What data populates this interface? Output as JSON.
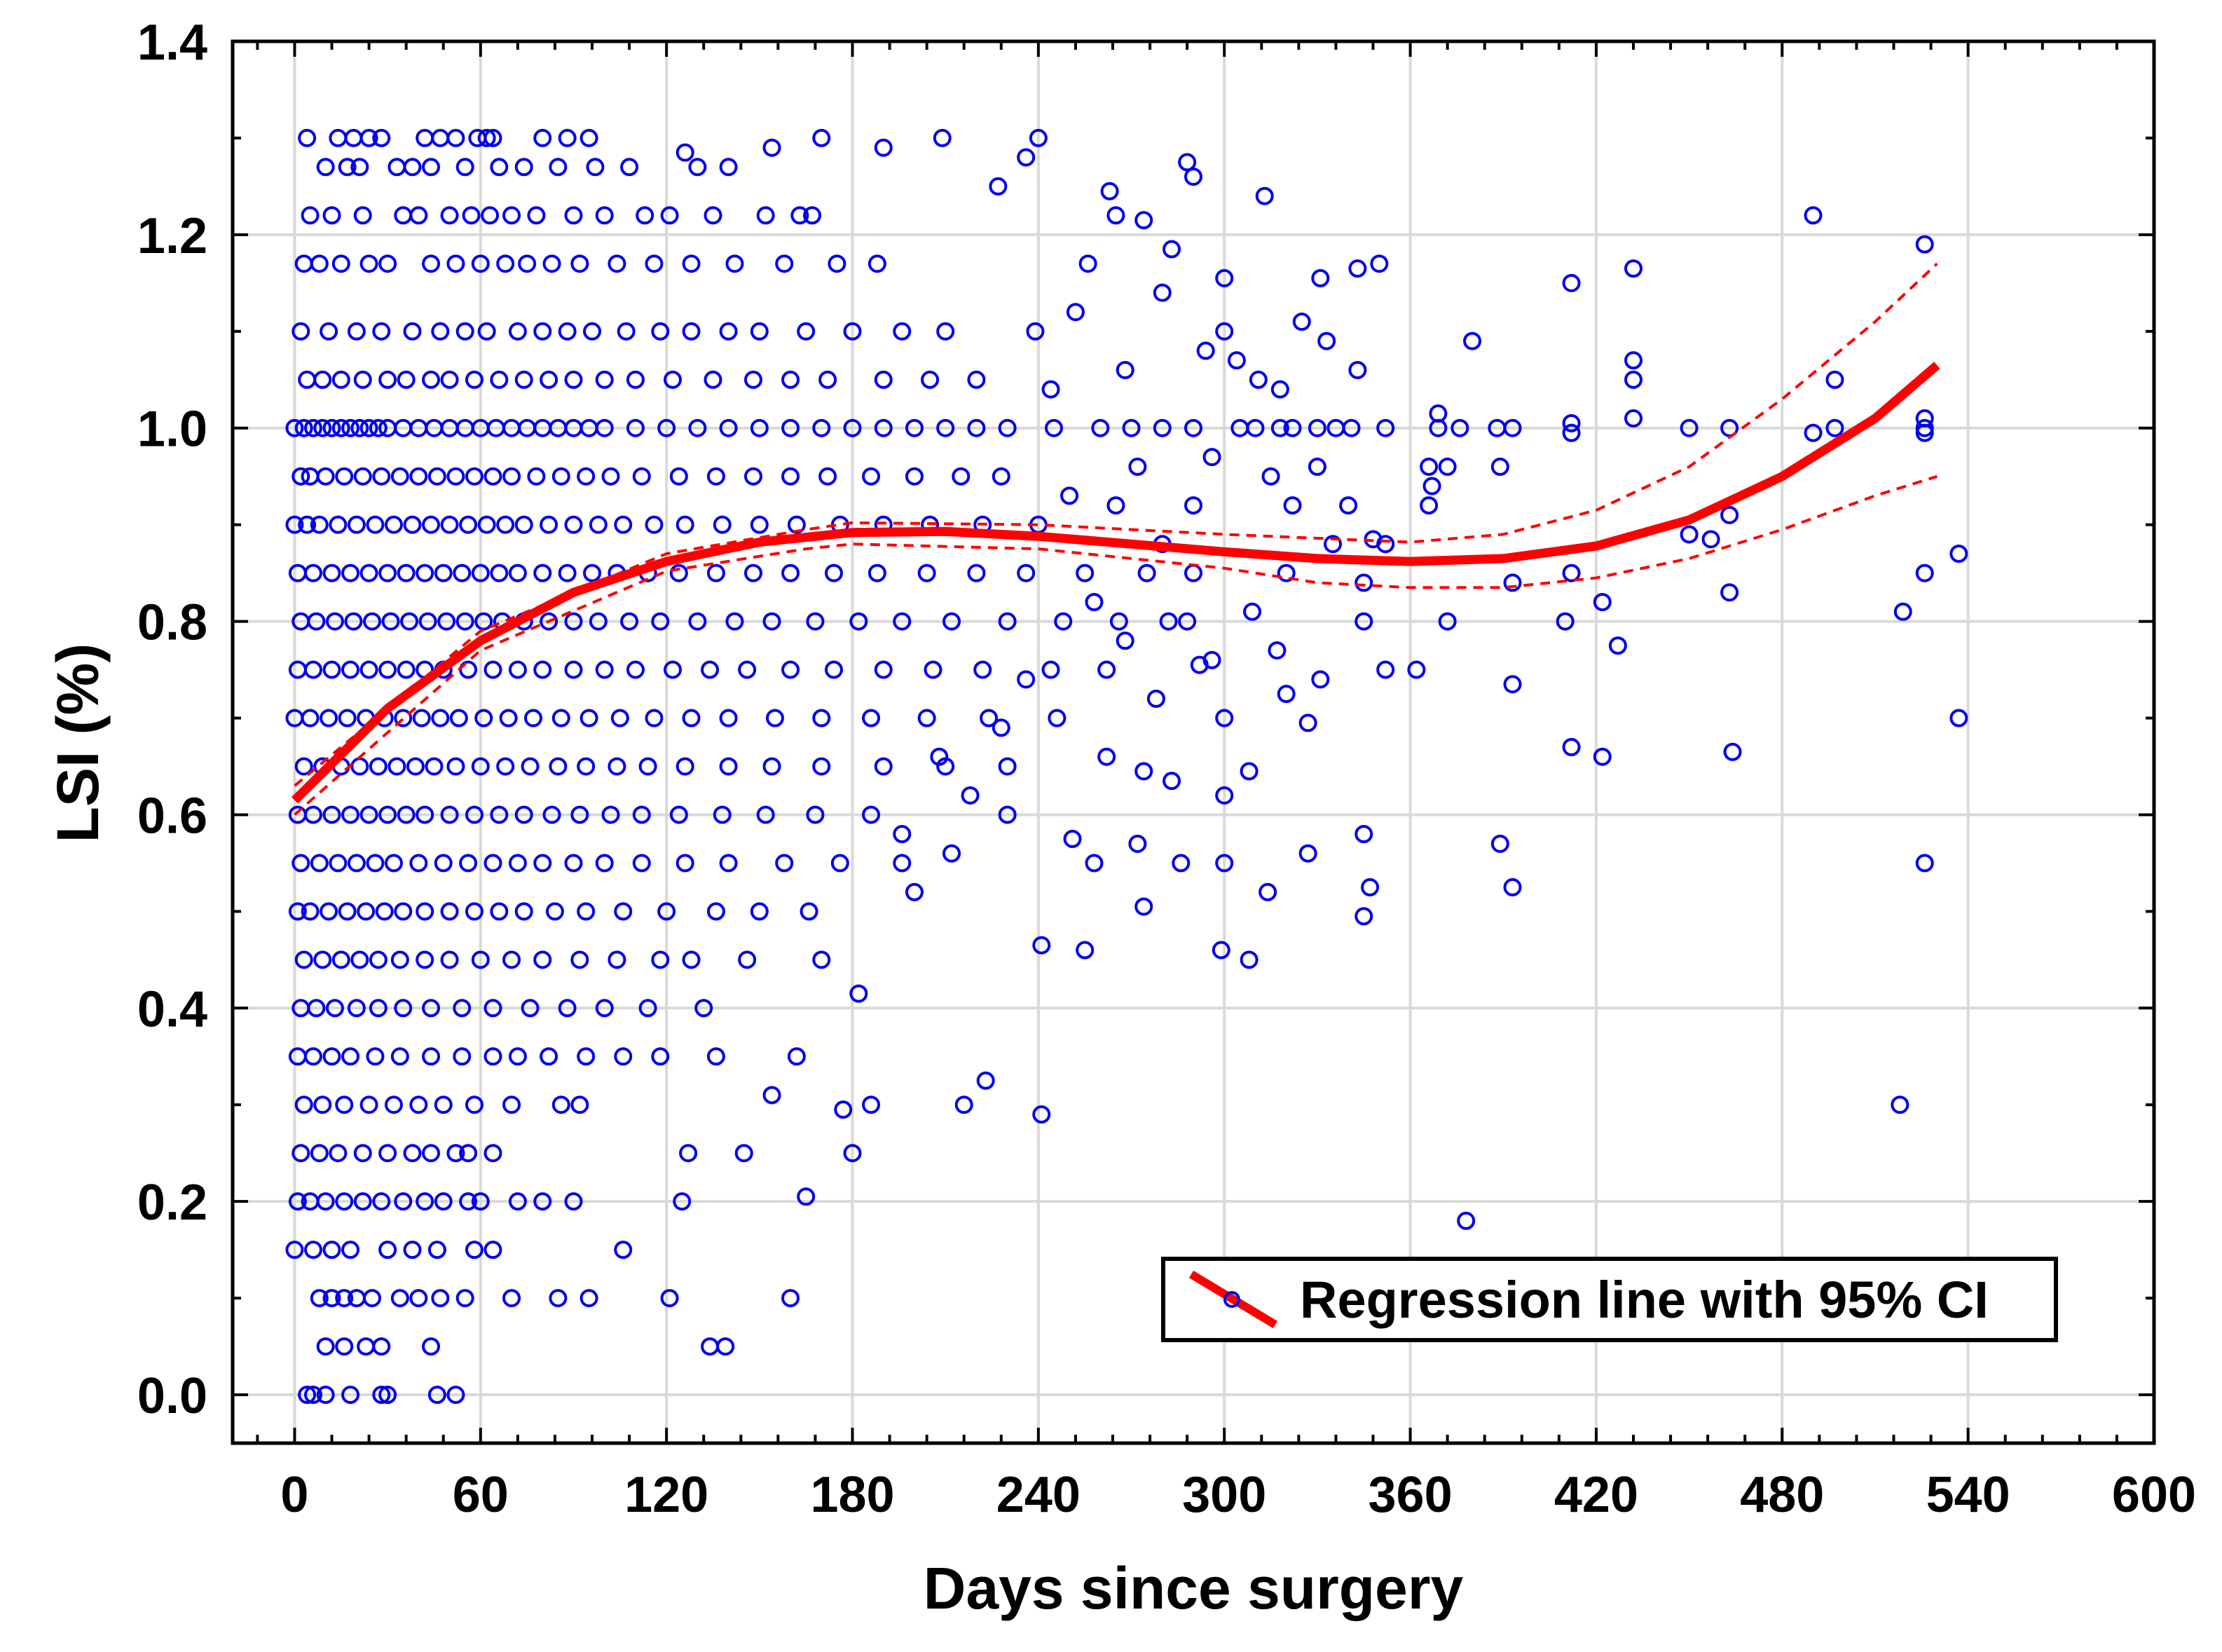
{
  "chart_data": {
    "type": "scatter",
    "title": "",
    "xlabel": "Days since surgery",
    "ylabel": "LSI (%)",
    "xlim": [
      -20,
      600
    ],
    "ylim": [
      -0.05,
      1.4
    ],
    "xticks": [
      0,
      60,
      120,
      180,
      240,
      300,
      360,
      420,
      480,
      540,
      600
    ],
    "yticks": [
      "0.0",
      "0.2",
      "0.4",
      "0.6",
      "0.8",
      "1.0",
      "1.2",
      "1.4"
    ],
    "grid": true,
    "legend": {
      "placement": "bottom-right",
      "label": "Regression line with 95% CI"
    },
    "colors": {
      "points": "#0000ee",
      "regression": "#ff0000",
      "grid": "#d9d9d9"
    },
    "marker": "open-circle",
    "banded_points": [
      {
        "y": 1.3,
        "x": [
          4,
          14,
          19,
          24,
          28,
          42,
          47,
          52,
          59,
          62,
          64,
          80,
          88,
          95
        ]
      },
      {
        "y": 1.27,
        "x": [
          10,
          17,
          21,
          33,
          38,
          44,
          55,
          66,
          74,
          85,
          97,
          108,
          130,
          140
        ]
      },
      {
        "y": 1.22,
        "x": [
          5,
          12,
          22,
          35,
          40,
          50,
          57,
          63,
          70,
          78,
          90,
          100,
          113,
          121,
          135,
          152,
          163,
          167
        ]
      },
      {
        "y": 1.17,
        "x": [
          3,
          8,
          15,
          24,
          30,
          44,
          52,
          60,
          68,
          75,
          83,
          92,
          104,
          116,
          128,
          142,
          158,
          175,
          188
        ]
      },
      {
        "y": 1.1,
        "x": [
          2,
          11,
          20,
          28,
          38,
          47,
          55,
          62,
          72,
          80,
          88,
          96,
          107,
          118,
          128,
          140,
          150,
          165,
          180,
          196,
          210
        ]
      },
      {
        "y": 1.05,
        "x": [
          4,
          9,
          15,
          22,
          30,
          36,
          44,
          50,
          58,
          66,
          74,
          82,
          90,
          100,
          110,
          122,
          135,
          148,
          160,
          172,
          190,
          205,
          220
        ]
      },
      {
        "y": 1.0,
        "x": [
          0,
          3,
          6,
          9,
          12,
          15,
          18,
          21,
          24,
          27,
          30,
          35,
          40,
          45,
          50,
          55,
          60,
          65,
          70,
          75,
          80,
          85,
          90,
          95,
          100,
          110,
          120,
          130,
          140,
          150,
          160,
          170,
          180,
          190,
          200,
          210,
          220,
          230,
          245,
          260,
          270,
          280,
          290
        ]
      },
      {
        "y": 0.95,
        "x": [
          2,
          5,
          10,
          16,
          22,
          28,
          34,
          40,
          46,
          52,
          58,
          64,
          70,
          78,
          86,
          94,
          102,
          112,
          124,
          136,
          148,
          160,
          172,
          186,
          200,
          215,
          228
        ]
      },
      {
        "y": 0.9,
        "x": [
          0,
          4,
          8,
          14,
          20,
          26,
          32,
          38,
          44,
          50,
          56,
          62,
          68,
          74,
          82,
          90,
          98,
          106,
          116,
          126,
          138,
          150,
          162,
          176,
          190,
          205,
          222,
          240
        ]
      },
      {
        "y": 0.85,
        "x": [
          1,
          6,
          12,
          18,
          24,
          30,
          36,
          42,
          48,
          54,
          60,
          66,
          72,
          80,
          88,
          96,
          104,
          114,
          124,
          136,
          148,
          160,
          174,
          188,
          204,
          220,
          236,
          255,
          275,
          290
        ]
      },
      {
        "y": 0.8,
        "x": [
          2,
          7,
          13,
          19,
          25,
          31,
          37,
          43,
          49,
          55,
          61,
          67,
          74,
          82,
          90,
          98,
          108,
          118,
          130,
          142,
          154,
          168,
          182,
          196,
          212,
          230,
          248,
          266,
          282
        ]
      },
      {
        "y": 0.75,
        "x": [
          1,
          6,
          12,
          18,
          24,
          30,
          36,
          42,
          48,
          56,
          64,
          72,
          80,
          90,
          100,
          110,
          122,
          134,
          146,
          160,
          174,
          190,
          206,
          222,
          244,
          262
        ]
      },
      {
        "y": 0.7,
        "x": [
          0,
          5,
          11,
          17,
          23,
          29,
          35,
          41,
          47,
          53,
          61,
          69,
          77,
          86,
          95,
          105,
          116,
          128,
          140,
          155,
          170,
          186,
          204,
          224
        ]
      },
      {
        "y": 0.65,
        "x": [
          3,
          9,
          15,
          21,
          27,
          33,
          39,
          45,
          52,
          60,
          68,
          76,
          85,
          94,
          104,
          114,
          126,
          140,
          154,
          170,
          190,
          210,
          230
        ]
      },
      {
        "y": 0.6,
        "x": [
          1,
          6,
          12,
          18,
          24,
          30,
          36,
          42,
          50,
          58,
          66,
          74,
          83,
          92,
          102,
          112,
          124,
          138,
          152,
          168,
          186
        ]
      },
      {
        "y": 0.55,
        "x": [
          2,
          8,
          14,
          20,
          26,
          32,
          40,
          48,
          56,
          64,
          72,
          80,
          90,
          100,
          112,
          126,
          140,
          158,
          176,
          196
        ]
      },
      {
        "y": 0.5,
        "x": [
          1,
          5,
          11,
          17,
          23,
          29,
          35,
          42,
          50,
          58,
          66,
          74,
          84,
          94,
          106,
          120,
          136,
          150,
          166
        ]
      },
      {
        "y": 0.45,
        "x": [
          3,
          9,
          15,
          21,
          27,
          34,
          42,
          50,
          60,
          70,
          80,
          92,
          104,
          118,
          128,
          146,
          170
        ]
      },
      {
        "y": 0.4,
        "x": [
          2,
          7,
          13,
          20,
          27,
          35,
          44,
          54,
          64,
          76,
          88,
          100,
          114,
          132
        ]
      },
      {
        "y": 0.35,
        "x": [
          1,
          6,
          12,
          18,
          26,
          34,
          44,
          54,
          64,
          72,
          82,
          94,
          106,
          118,
          136,
          162
        ]
      },
      {
        "y": 0.3,
        "x": [
          3,
          9,
          16,
          24,
          32,
          40,
          48,
          58,
          70,
          86,
          92
        ]
      },
      {
        "y": 0.25,
        "x": [
          2,
          8,
          14,
          22,
          30,
          38,
          44,
          52,
          56,
          64
        ]
      },
      {
        "y": 0.2,
        "x": [
          1,
          5,
          10,
          16,
          22,
          28,
          35,
          42,
          48,
          56,
          60,
          72,
          80,
          90
        ]
      },
      {
        "y": 0.15,
        "x": [
          0,
          6,
          12,
          18,
          30,
          38,
          46,
          58,
          64
        ]
      },
      {
        "y": 0.1,
        "x": [
          8,
          12,
          16,
          20,
          25,
          34,
          40,
          47,
          55,
          70,
          85,
          95
        ]
      },
      {
        "y": 0.05,
        "x": [
          10,
          16,
          23,
          28,
          44
        ]
      },
      {
        "y": 0.0,
        "x": [
          4,
          6,
          10,
          18,
          28,
          30,
          46,
          52
        ]
      }
    ],
    "points": [
      [
        490,
        1.22
      ],
      [
        526,
        1.19
      ],
      [
        432,
        1.165
      ],
      [
        412,
        1.15
      ],
      [
        380,
        1.09
      ],
      [
        432,
        1.07
      ],
      [
        432,
        1.05
      ],
      [
        497,
        1.05
      ],
      [
        412,
        1.005
      ],
      [
        412,
        0.995
      ],
      [
        432,
        1.01
      ],
      [
        450,
        1.0
      ],
      [
        463,
        1.0
      ],
      [
        490,
        0.995
      ],
      [
        497,
        1.0
      ],
      [
        526,
        1.01
      ],
      [
        526,
        1.0
      ],
      [
        526,
        0.995
      ],
      [
        389,
        0.96
      ],
      [
        537,
        0.87
      ],
      [
        450,
        0.89
      ],
      [
        457,
        0.885
      ],
      [
        463,
        0.91
      ],
      [
        412,
        0.85
      ],
      [
        393,
        0.84
      ],
      [
        463,
        0.83
      ],
      [
        519,
        0.81
      ],
      [
        526,
        0.85
      ],
      [
        410,
        0.8
      ],
      [
        422,
        0.82
      ],
      [
        427,
        0.775
      ],
      [
        393,
        0.735
      ],
      [
        537,
        0.7
      ],
      [
        412,
        0.67
      ],
      [
        422,
        0.66
      ],
      [
        464,
        0.665
      ],
      [
        389,
        0.57
      ],
      [
        393,
        0.525
      ],
      [
        526,
        0.55
      ],
      [
        518,
        0.3
      ],
      [
        378,
        0.18
      ],
      [
        372,
        0.8
      ],
      [
        362,
        0.75
      ],
      [
        352,
        0.75
      ],
      [
        369,
        1.0
      ],
      [
        376,
        1.0
      ],
      [
        388,
        1.0
      ],
      [
        393,
        1.0
      ],
      [
        369,
        1.015
      ],
      [
        366,
        0.96
      ],
      [
        372,
        0.96
      ],
      [
        367,
        0.94
      ],
      [
        366,
        0.92
      ],
      [
        352,
        1.0
      ],
      [
        341,
        1.0
      ],
      [
        343,
        1.06
      ],
      [
        350,
        1.17
      ],
      [
        343,
        1.165
      ],
      [
        331,
        1.155
      ],
      [
        333,
        1.09
      ],
      [
        313,
        1.24
      ],
      [
        300,
        1.155
      ],
      [
        304,
        1.07
      ],
      [
        311,
        1.05
      ],
      [
        325,
        1.11
      ],
      [
        348,
        0.885
      ],
      [
        352,
        0.88
      ],
      [
        345,
        0.8
      ],
      [
        345,
        0.84
      ],
      [
        345,
        0.58
      ],
      [
        347,
        0.525
      ],
      [
        345,
        0.495
      ],
      [
        327,
        0.56
      ],
      [
        327,
        0.695
      ],
      [
        331,
        0.74
      ],
      [
        314,
        0.52
      ],
      [
        308,
        0.45
      ],
      [
        299,
        0.46
      ],
      [
        300,
        0.55
      ],
      [
        300,
        0.62
      ],
      [
        300,
        0.7
      ],
      [
        308,
        0.645
      ],
      [
        309,
        0.81
      ],
      [
        317,
        0.77
      ],
      [
        320,
        0.725
      ],
      [
        288,
        0.8
      ],
      [
        292,
        0.755
      ],
      [
        283,
        0.635
      ],
      [
        286,
        0.55
      ],
      [
        274,
        0.645
      ],
      [
        274,
        0.505
      ],
      [
        272,
        0.57
      ],
      [
        258,
        0.55
      ],
      [
        255,
        0.46
      ],
      [
        251,
        0.575
      ],
      [
        241,
        0.465
      ],
      [
        241,
        0.29
      ],
      [
        223,
        0.325
      ],
      [
        216,
        0.3
      ],
      [
        186,
        0.3
      ],
      [
        177,
        0.295
      ],
      [
        180,
        0.25
      ],
      [
        182,
        0.415
      ],
      [
        165,
        0.205
      ],
      [
        160,
        0.1
      ],
      [
        154,
        0.31
      ],
      [
        145,
        0.25
      ],
      [
        134,
        0.05
      ],
      [
        139,
        0.05
      ],
      [
        121,
        0.1
      ],
      [
        125,
        0.2
      ],
      [
        127,
        0.25
      ],
      [
        106,
        0.15
      ],
      [
        209,
        1.3
      ],
      [
        240,
        1.3
      ],
      [
        170,
        1.3
      ],
      [
        154,
        1.29
      ],
      [
        190,
        1.29
      ],
      [
        126,
        1.285
      ],
      [
        288,
        1.275
      ],
      [
        290,
        1.26
      ],
      [
        263,
        1.245
      ],
      [
        265,
        1.22
      ],
      [
        274,
        1.215
      ],
      [
        236,
        1.28
      ],
      [
        227,
        1.25
      ],
      [
        283,
        1.185
      ],
      [
        256,
        1.17
      ],
      [
        239,
        1.1
      ],
      [
        318,
        1.0
      ],
      [
        322,
        1.0
      ],
      [
        330,
        1.0
      ],
      [
        336,
        1.0
      ],
      [
        305,
        1.0
      ],
      [
        310,
        1.0
      ],
      [
        296,
        0.97
      ],
      [
        315,
        0.95
      ],
      [
        322,
        0.92
      ],
      [
        330,
        0.96
      ],
      [
        320,
        0.85
      ],
      [
        335,
        0.88
      ],
      [
        340,
        0.92
      ],
      [
        265,
        0.92
      ],
      [
        272,
        0.96
      ],
      [
        280,
        0.88
      ],
      [
        290,
        0.92
      ],
      [
        250,
        0.93
      ],
      [
        258,
        0.82
      ],
      [
        268,
        0.78
      ],
      [
        246,
        0.7
      ],
      [
        236,
        0.74
      ],
      [
        228,
        0.69
      ],
      [
        218,
        0.62
      ],
      [
        208,
        0.66
      ],
      [
        196,
        0.58
      ],
      [
        200,
        0.52
      ],
      [
        212,
        0.56
      ],
      [
        230,
        0.6
      ],
      [
        262,
        0.66
      ],
      [
        278,
        0.72
      ],
      [
        296,
        0.76
      ],
      [
        252,
        1.12
      ],
      [
        268,
        1.06
      ],
      [
        280,
        1.14
      ],
      [
        294,
        1.08
      ],
      [
        300,
        1.1
      ],
      [
        318,
        1.04
      ],
      [
        244,
        1.04
      ]
    ],
    "regression_line": {
      "x": [
        0,
        30,
        60,
        90,
        120,
        150,
        180,
        210,
        240,
        270,
        300,
        330,
        360,
        390,
        420,
        450,
        480,
        510,
        530
      ],
      "y": [
        0.615,
        0.71,
        0.78,
        0.83,
        0.862,
        0.882,
        0.892,
        0.893,
        0.888,
        0.88,
        0.872,
        0.865,
        0.862,
        0.865,
        0.878,
        0.905,
        0.95,
        1.01,
        1.065
      ]
    },
    "ci_upper": {
      "x": [
        0,
        60,
        120,
        165,
        180,
        240,
        300,
        360,
        390,
        420,
        450,
        480,
        510,
        530
      ],
      "y": [
        0.63,
        0.79,
        0.87,
        0.895,
        0.902,
        0.9,
        0.89,
        0.882,
        0.89,
        0.915,
        0.96,
        1.03,
        1.11,
        1.17
      ]
    },
    "ci_lower": {
      "x": [
        0,
        60,
        120,
        165,
        180,
        240,
        300,
        330,
        360,
        390,
        420,
        450,
        480,
        510,
        530
      ],
      "y": [
        0.6,
        0.77,
        0.852,
        0.875,
        0.88,
        0.875,
        0.855,
        0.84,
        0.835,
        0.835,
        0.845,
        0.865,
        0.895,
        0.93,
        0.95
      ]
    }
  }
}
